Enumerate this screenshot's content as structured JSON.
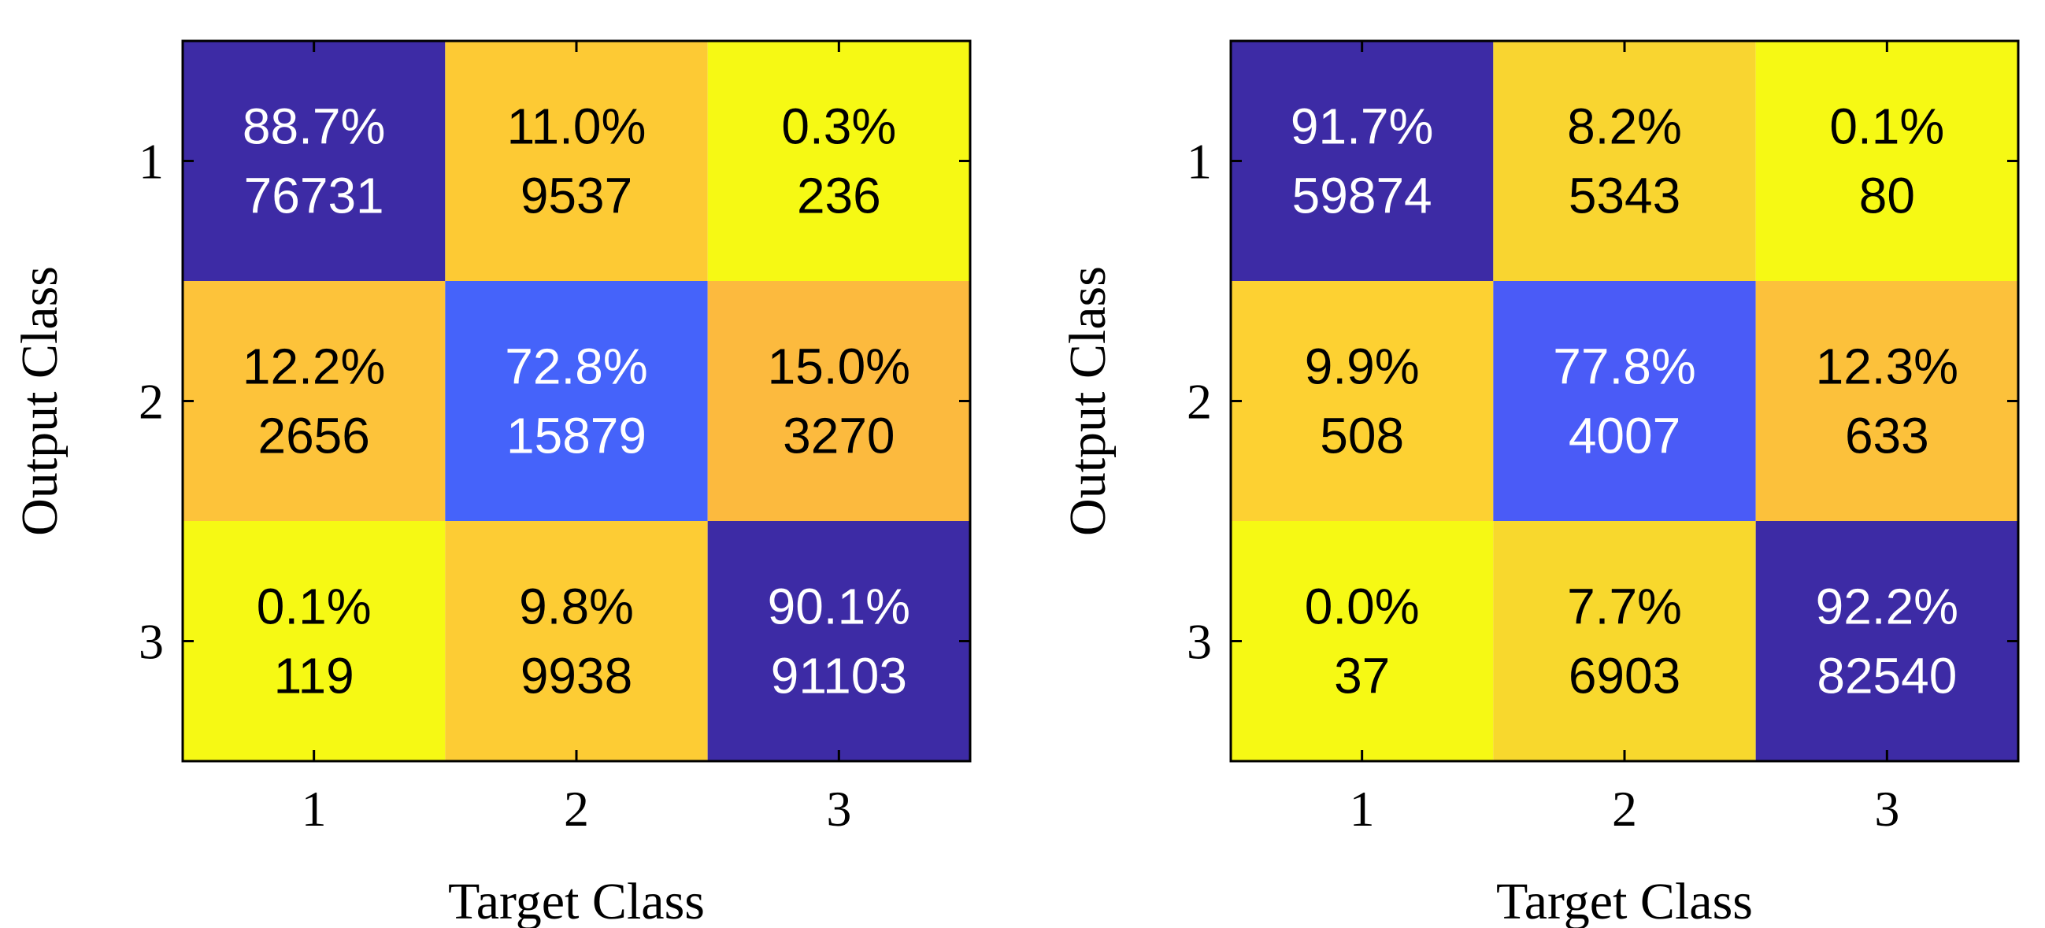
{
  "chart_data": [
    {
      "type": "heatmap",
      "title": "",
      "xlabel": "Target Class",
      "ylabel": "Output Class",
      "x_ticks": [
        "1",
        "2",
        "3"
      ],
      "y_ticks": [
        "1",
        "2",
        "3"
      ],
      "cells": [
        [
          {
            "pct": "88.7%",
            "count": "76731",
            "color": "#3d2ba5",
            "text_color": "#ffffff"
          },
          {
            "pct": "11.0%",
            "count": "9537",
            "color": "#fdca34",
            "text_color": "#000000"
          },
          {
            "pct": "0.3%",
            "count": "236",
            "color": "#f6f914",
            "text_color": "#000000"
          }
        ],
        [
          {
            "pct": "12.2%",
            "count": "2656",
            "color": "#fdc33a",
            "text_color": "#000000"
          },
          {
            "pct": "72.8%",
            "count": "15879",
            "color": "#4563fa",
            "text_color": "#ffffff"
          },
          {
            "pct": "15.0%",
            "count": "3270",
            "color": "#fcba3e",
            "text_color": "#000000"
          }
        ],
        [
          {
            "pct": "0.1%",
            "count": "119",
            "color": "#f6f914",
            "text_color": "#000000"
          },
          {
            "pct": "9.8%",
            "count": "9938",
            "color": "#fdcc34",
            "text_color": "#000000"
          },
          {
            "pct": "90.1%",
            "count": "91103",
            "color": "#3d2ba5",
            "text_color": "#ffffff"
          }
        ]
      ]
    },
    {
      "type": "heatmap",
      "title": "",
      "xlabel": "Target Class",
      "ylabel": "Output Class",
      "x_ticks": [
        "1",
        "2",
        "3"
      ],
      "y_ticks": [
        "1",
        "2",
        "3"
      ],
      "cells": [
        [
          {
            "pct": "91.7%",
            "count": "59874",
            "color": "#3d2ba5",
            "text_color": "#ffffff"
          },
          {
            "pct": "8.2%",
            "count": "5343",
            "color": "#f9d530",
            "text_color": "#000000"
          },
          {
            "pct": "0.1%",
            "count": "80",
            "color": "#f6f914",
            "text_color": "#000000"
          }
        ],
        [
          {
            "pct": "9.9%",
            "count": "508",
            "color": "#fdd132",
            "text_color": "#000000"
          },
          {
            "pct": "77.8%",
            "count": "4007",
            "color": "#4a5bf7",
            "text_color": "#ffffff"
          },
          {
            "pct": "12.3%",
            "count": "633",
            "color": "#fcc13b",
            "text_color": "#000000"
          }
        ],
        [
          {
            "pct": "0.0%",
            "count": "37",
            "color": "#f6f914",
            "text_color": "#000000"
          },
          {
            "pct": "7.7%",
            "count": "6903",
            "color": "#f8d82d",
            "text_color": "#000000"
          },
          {
            "pct": "92.2%",
            "count": "82540",
            "color": "#3d2ba5",
            "text_color": "#ffffff"
          }
        ]
      ]
    }
  ]
}
